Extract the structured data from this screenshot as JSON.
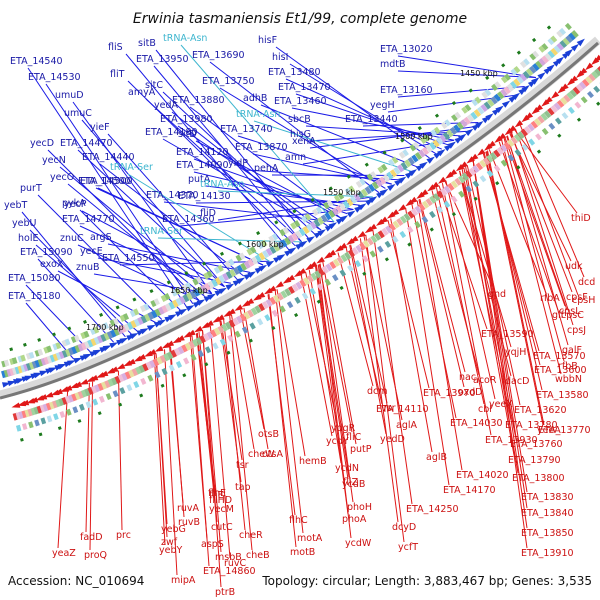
{
  "header": {
    "title": "Erwinia tasmaniensis Et1/99, complete genome"
  },
  "footer": {
    "accession": "Accession: NC_010694",
    "summary": "Topology: circular; Length: 3,883,467 bp; Genes: 3,535"
  },
  "colors": {
    "forward": "#1a1aa6",
    "trna": "#3fb6cf",
    "reverse": "#cc1111",
    "backbone": "#8c8c8c",
    "gc_marker": "#1d7a1d"
  },
  "ruler": [
    "1450 kbp",
    "1500 kbp",
    "1550 kbp",
    "1600 kbp",
    "1650 kbp",
    "1700 kbp"
  ],
  "forward_genes": [
    "ETA_14540",
    "ETA_14530",
    "umuD",
    "umuC",
    "yieF",
    "yecD",
    "ETA_14470",
    "yecN",
    "ETA_14440",
    "yecO",
    "ETA_14500",
    "purT",
    "pykA",
    "yecP",
    "yebT",
    "ETA_14770",
    "yebU",
    "argS",
    "holE",
    "znuC",
    "yecE",
    "ETA_15090",
    "exoX",
    "znuB",
    "ETA_15080",
    "ETA_14550",
    "ETA_15180",
    "fliS",
    "fliT",
    "sitB",
    "ETA_13950",
    "amyA",
    "sitC",
    "yedA",
    "ETA_13880",
    "ETA_13980",
    "ETA_14180",
    "sitD",
    "ETA_14120",
    "ETA_14090",
    "ETA_14500",
    "putA",
    "ETA_14370",
    "ETA_14130",
    "ETA_14360",
    "fliD",
    "ETA_13690",
    "ETA_13750",
    "ETA_13740",
    "ETA_13870",
    "yidP",
    "pehA",
    "hisF",
    "hisI",
    "ETA_13480",
    "ETA_13470",
    "ETA_13460",
    "adhB",
    "sbcB",
    "xenA",
    "ETA_13440",
    "hisG",
    "amn",
    "ETA_13020",
    "mdtB",
    "ETA_13160",
    "yegH"
  ],
  "trna_genes": [
    "tRNA-Asn",
    "tRNA-Asn",
    "tRNA-Ser",
    "tRNA-Asn",
    "tRNA-Ser"
  ],
  "reverse_genes": [
    "thiD",
    "udk",
    "dcd",
    "cpsF",
    "cpsH",
    "cpsL",
    "cpsC",
    "rfbA",
    "cpsJ",
    "gnd",
    "glf",
    "galF",
    "rfbB",
    "wbbN",
    "ETA_13590",
    "ETA_13570",
    "yqjH",
    "ETA_13600",
    "acoR",
    "dacD",
    "ETA_13580",
    "oxdD",
    "ETA_13620",
    "nac",
    "yeeX",
    "ETA_13770",
    "cbl",
    "ETA_14030",
    "ETA_13970",
    "yeeA",
    "ETA_13780",
    "ETA_13760",
    "ETA_13930",
    "ETA_13790",
    "dcm",
    "vsr",
    "fliC",
    "yedD",
    "ETA_14110",
    "aglA",
    "aglB",
    "ETA_14020",
    "ETA_13800",
    "ETA_14170",
    "ETA_13830",
    "ETA_13840",
    "ETA_13850",
    "ETA_13910",
    "ETA_14250",
    "ydgR",
    "putP",
    "ycdY",
    "ycdN",
    "hemB",
    "ycdB",
    "fliZ",
    "phoH",
    "dcyD",
    "phoA",
    "ycdW",
    "ycfT",
    "otsB",
    "otsA",
    "fliE",
    "fliHD",
    "cheW",
    "tsr",
    "tap",
    "cheR",
    "cheB",
    "motB",
    "motA",
    "flhC",
    "flhE",
    "yecM",
    "cutC",
    "ruvA",
    "ruvB",
    "aspS",
    "yebG",
    "yebY",
    "zwf",
    "msbB",
    "ETA_14860",
    "ruvC",
    "ptrB",
    "mipA",
    "yeaZ",
    "fadD",
    "proQ",
    "prc"
  ]
}
